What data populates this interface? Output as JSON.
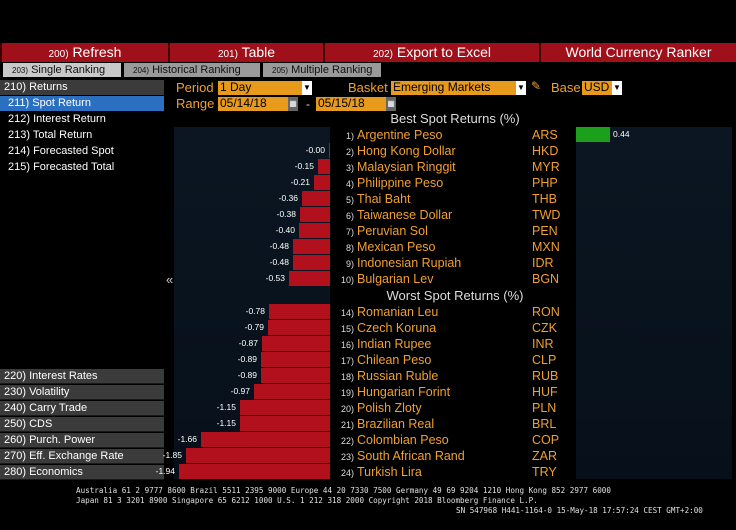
{
  "menu": {
    "refresh": {
      "num": "200)",
      "label": "Refresh"
    },
    "table": {
      "num": "201)",
      "label": "Table"
    },
    "export": {
      "num": "202)",
      "label": "Export to Excel"
    },
    "title": "World Currency Ranker"
  },
  "tabs": [
    {
      "num": "203)",
      "label": "Single Ranking"
    },
    {
      "num": "204)",
      "label": "Historical Ranking"
    },
    {
      "num": "205)",
      "label": "Multiple Ranking"
    }
  ],
  "sidebar": {
    "returns_header": "210) Returns",
    "returns_items": [
      "211) Spot Return",
      "212) Interest Return",
      "213) Total Return",
      "214) Forecasted Spot",
      "215) Forecasted Total"
    ],
    "groups": [
      "220) Interest Rates",
      "230) Volatility",
      "240) Carry Trade",
      "250) CDS",
      "260) Purch. Power",
      "270) Eff. Exchange Rate",
      "280) Economics"
    ],
    "collapse_glyph": "«"
  },
  "controls": {
    "period_label": "Period",
    "period_value": "1 Day",
    "basket_label": "Basket",
    "basket_value": "Emerging Markets",
    "base_label": "Base",
    "base_value": "USD",
    "range_label": "Range",
    "range_from": "05/14/18",
    "range_sep": "-",
    "range_to": "05/15/18"
  },
  "best_title": "Best Spot Returns (%)",
  "worst_title": "Worst Spot Returns (%)",
  "best": [
    {
      "rank": "1)",
      "name": "Argentine Peso",
      "code": "ARS",
      "value": 0.44,
      "label": "0.44"
    },
    {
      "rank": "2)",
      "name": "Hong Kong Dollar",
      "code": "HKD",
      "value": -0.0,
      "label": "-0.00"
    },
    {
      "rank": "3)",
      "name": "Malaysian Ringgit",
      "code": "MYR",
      "value": -0.15,
      "label": "-0.15"
    },
    {
      "rank": "4)",
      "name": "Philippine Peso",
      "code": "PHP",
      "value": -0.21,
      "label": "-0.21"
    },
    {
      "rank": "5)",
      "name": "Thai Baht",
      "code": "THB",
      "value": -0.36,
      "label": "-0.36"
    },
    {
      "rank": "6)",
      "name": "Taiwanese Dollar",
      "code": "TWD",
      "value": -0.38,
      "label": "-0.38"
    },
    {
      "rank": "7)",
      "name": "Peruvian Sol",
      "code": "PEN",
      "value": -0.4,
      "label": "-0.40"
    },
    {
      "rank": "8)",
      "name": "Mexican Peso",
      "code": "MXN",
      "value": -0.48,
      "label": "-0.48"
    },
    {
      "rank": "9)",
      "name": "Indonesian Rupiah",
      "code": "IDR",
      "value": -0.48,
      "label": "-0.48"
    },
    {
      "rank": "10)",
      "name": "Bulgarian Lev",
      "code": "BGN",
      "value": -0.53,
      "label": "-0.53"
    }
  ],
  "worst": [
    {
      "rank": "14)",
      "name": "Romanian Leu",
      "code": "RON",
      "value": -0.78,
      "label": "-0.78"
    },
    {
      "rank": "15)",
      "name": "Czech Koruna",
      "code": "CZK",
      "value": -0.79,
      "label": "-0.79"
    },
    {
      "rank": "16)",
      "name": "Indian Rupee",
      "code": "INR",
      "value": -0.87,
      "label": "-0.87"
    },
    {
      "rank": "17)",
      "name": "Chilean Peso",
      "code": "CLP",
      "value": -0.89,
      "label": "-0.89"
    },
    {
      "rank": "18)",
      "name": "Russian Ruble",
      "code": "RUB",
      "value": -0.89,
      "label": "-0.89"
    },
    {
      "rank": "19)",
      "name": "Hungarian Forint",
      "code": "HUF",
      "value": -0.97,
      "label": "-0.97"
    },
    {
      "rank": "20)",
      "name": "Polish Zloty",
      "code": "PLN",
      "value": -1.15,
      "label": "-1.15"
    },
    {
      "rank": "21)",
      "name": "Brazilian Real",
      "code": "BRL",
      "value": -1.15,
      "label": "-1.15"
    },
    {
      "rank": "22)",
      "name": "Colombian Peso",
      "code": "COP",
      "value": -1.66,
      "label": "-1.66"
    },
    {
      "rank": "23)",
      "name": "South African Rand",
      "code": "ZAR",
      "value": -1.85,
      "label": "-1.85"
    },
    {
      "rank": "24)",
      "name": "Turkish Lira",
      "code": "TRY",
      "value": -1.94,
      "label": "-1.94"
    }
  ],
  "colors": {
    "negative_bar": "#b3101e",
    "positive_bar": "#1aa01a",
    "label_orange": "#f0a030",
    "menu_red": "#a0101a",
    "selected_blue": "#2a6fc0"
  },
  "footer": {
    "line1": "Australia 61 2 9777 8600 Brazil 5511 2395 9000 Europe 44 20 7330 7500 Germany 49 69 9204 1210 Hong Kong 852 2977 6000",
    "line2": "Japan 81 3 3201 8900       Singapore 65 6212 1000       U.S. 1 212 318 2000          Copyright 2018 Bloomberg Finance L.P.",
    "line3": "SN 547968 H441-1164-0 15-May-18 17:57:24 CEST GMT+2:00"
  }
}
